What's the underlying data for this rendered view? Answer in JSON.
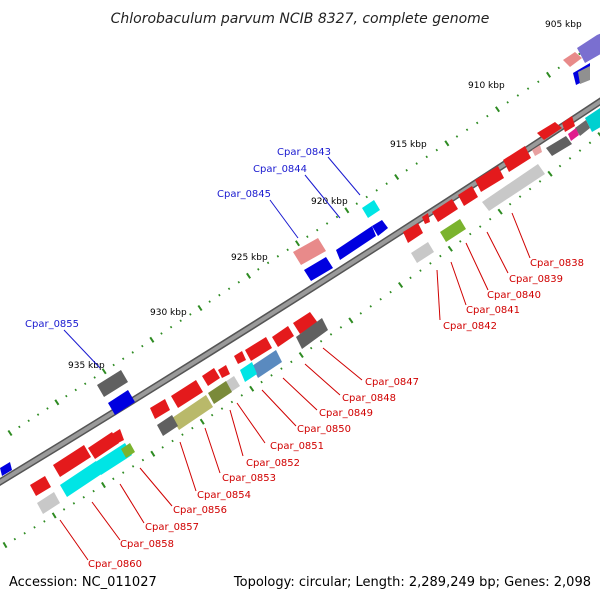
{
  "title": "Chlorobaculum parvum NCIB 8327, complete genome",
  "footer": {
    "accession": "Accession: NC_011027",
    "summary": "Topology: circular; Length: 2,289,249 bp; Genes: 2,098"
  },
  "ticks": [
    "905 kbp",
    "910 kbp",
    "915 kbp",
    "920 kbp",
    "925 kbp",
    "930 kbp",
    "935 kbp"
  ],
  "labels_top": [
    "Cpar_0843",
    "Cpar_0844",
    "Cpar_0845",
    "Cpar_0855"
  ],
  "labels_bottom": [
    "Cpar_0838",
    "Cpar_0839",
    "Cpar_0840",
    "Cpar_0841",
    "Cpar_0842",
    "Cpar_0847",
    "Cpar_0848",
    "Cpar_0849",
    "Cpar_0850",
    "Cpar_0851",
    "Cpar_0852",
    "Cpar_0853",
    "Cpar_0854",
    "Cpar_0856",
    "Cpar_0857",
    "Cpar_0858",
    "Cpar_0860"
  ],
  "colors": {
    "backbone": "#7a7a7a",
    "forward_cds": "#e41a1c",
    "reverse_cds": "#0000e0",
    "cyan_feature": "#00e5e5",
    "gray_feature": "#707070",
    "light_gray_feature": "#c8c8c8",
    "olive_feature": "#b9b96a",
    "green_feature": "#7bb32e",
    "pink_feature": "#e88a8a",
    "steel_feature": "#5a8abf",
    "magenta_feature": "#e01c8c",
    "tick_green": "#2e8b22",
    "label_blue": "#1a1ad0",
    "label_red": "#d00000"
  }
}
